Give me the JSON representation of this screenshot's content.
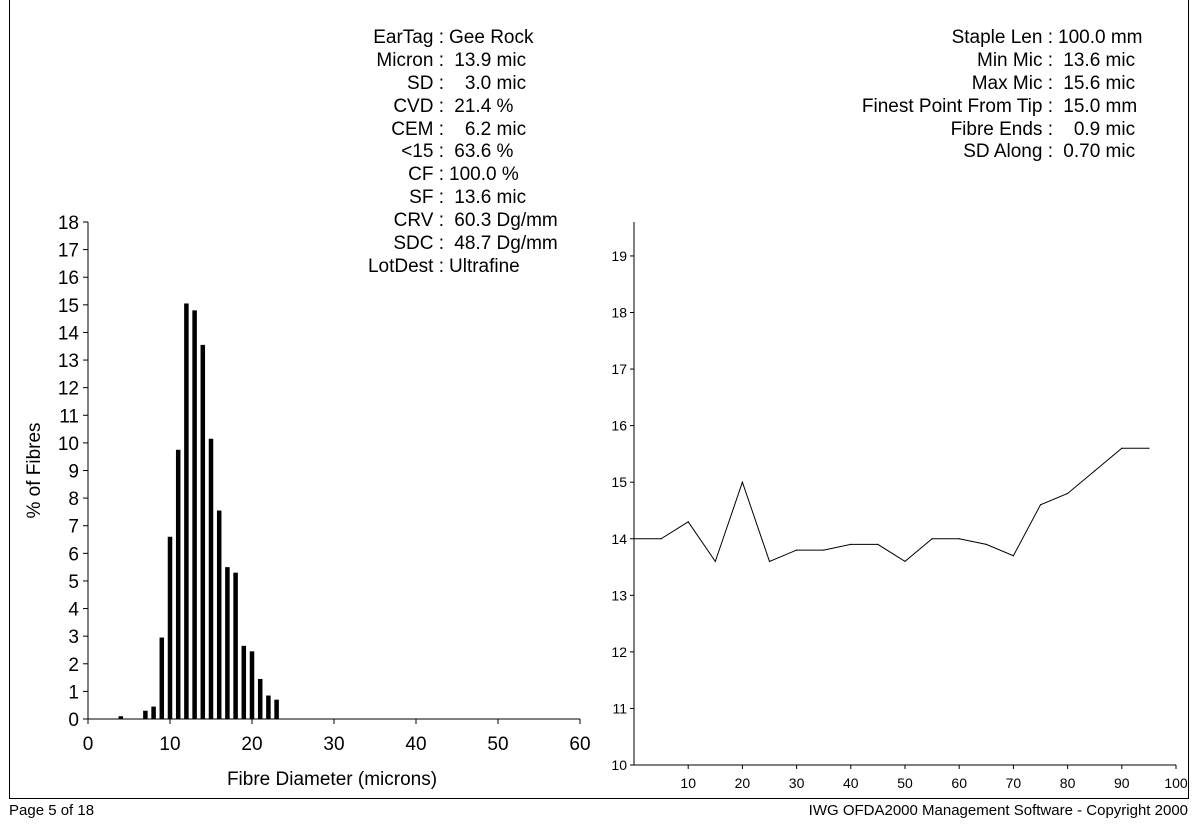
{
  "sample_stats": [
    {
      "label": "EarTag",
      "value": "Gee Rock"
    },
    {
      "label": "Micron",
      "value": " 13.9 mic"
    },
    {
      "label": "SD",
      "value": "   3.0 mic"
    },
    {
      "label": "CVD",
      "value": " 21.4 %"
    },
    {
      "label": "CEM",
      "value": "   6.2 mic"
    },
    {
      "label": "<15",
      "value": " 63.6 %"
    },
    {
      "label": "CF",
      "value": "100.0 %"
    },
    {
      "label": "SF",
      "value": " 13.6 mic"
    },
    {
      "label": "CRV",
      "value": " 60.3 Dg/mm"
    },
    {
      "label": "SDC",
      "value": " 48.7 Dg/mm"
    },
    {
      "label": "LotDest",
      "value": "Ultrafine"
    }
  ],
  "profile_stats": [
    {
      "label": "Staple Len",
      "value": "100.0 mm"
    },
    {
      "label": "Min Mic",
      "value": " 13.6 mic"
    },
    {
      "label": "Max Mic",
      "value": " 15.6 mic"
    },
    {
      "label": "Finest Point From Tip",
      "value": " 15.0 mm"
    },
    {
      "label": "Fibre Ends",
      "value": "   0.9 mic"
    },
    {
      "label": "SD Along",
      "value": " 0.70 mic"
    }
  ],
  "footer": {
    "page": "Page 5 of 18",
    "copyright": "IWG OFDA2000 Management Software - Copyright 2000"
  },
  "chart_data": [
    {
      "type": "bar",
      "xlabel": "Fibre Diameter (microns)",
      "ylabel": "% of Fibres",
      "xlim": [
        0,
        60
      ],
      "ylim": [
        0,
        18
      ],
      "xticks": [
        0,
        10,
        20,
        30,
        40,
        50,
        60
      ],
      "yticks": [
        0,
        1,
        2,
        3,
        4,
        5,
        6,
        7,
        8,
        9,
        10,
        11,
        12,
        13,
        14,
        15,
        16,
        17,
        18
      ],
      "x": [
        4,
        7,
        8,
        9,
        10,
        11,
        12,
        13,
        14,
        15,
        16,
        17,
        18,
        19,
        20,
        21,
        22,
        23
      ],
      "values": [
        0.1,
        0.3,
        0.45,
        2.95,
        6.6,
        9.75,
        15.05,
        14.8,
        13.55,
        10.15,
        7.55,
        5.5,
        5.3,
        2.65,
        2.45,
        1.45,
        0.85,
        0.7
      ]
    },
    {
      "type": "line",
      "xlim": [
        0,
        100
      ],
      "ylim": [
        10,
        19.6
      ],
      "xticks": [
        10,
        20,
        30,
        40,
        50,
        60,
        70,
        80,
        90,
        100
      ],
      "yticks": [
        10,
        11,
        12,
        13,
        14,
        15,
        16,
        17,
        18,
        19
      ],
      "x": [
        0,
        5,
        10,
        15,
        20,
        25,
        30,
        35,
        40,
        45,
        50,
        55,
        60,
        65,
        70,
        75,
        80,
        85,
        90,
        95
      ],
      "y": [
        14.0,
        14.0,
        14.3,
        13.6,
        15.0,
        13.6,
        13.8,
        13.8,
        13.9,
        13.9,
        13.6,
        14.0,
        14.0,
        13.9,
        13.7,
        14.6,
        14.8,
        15.2,
        15.6,
        15.6
      ]
    }
  ]
}
